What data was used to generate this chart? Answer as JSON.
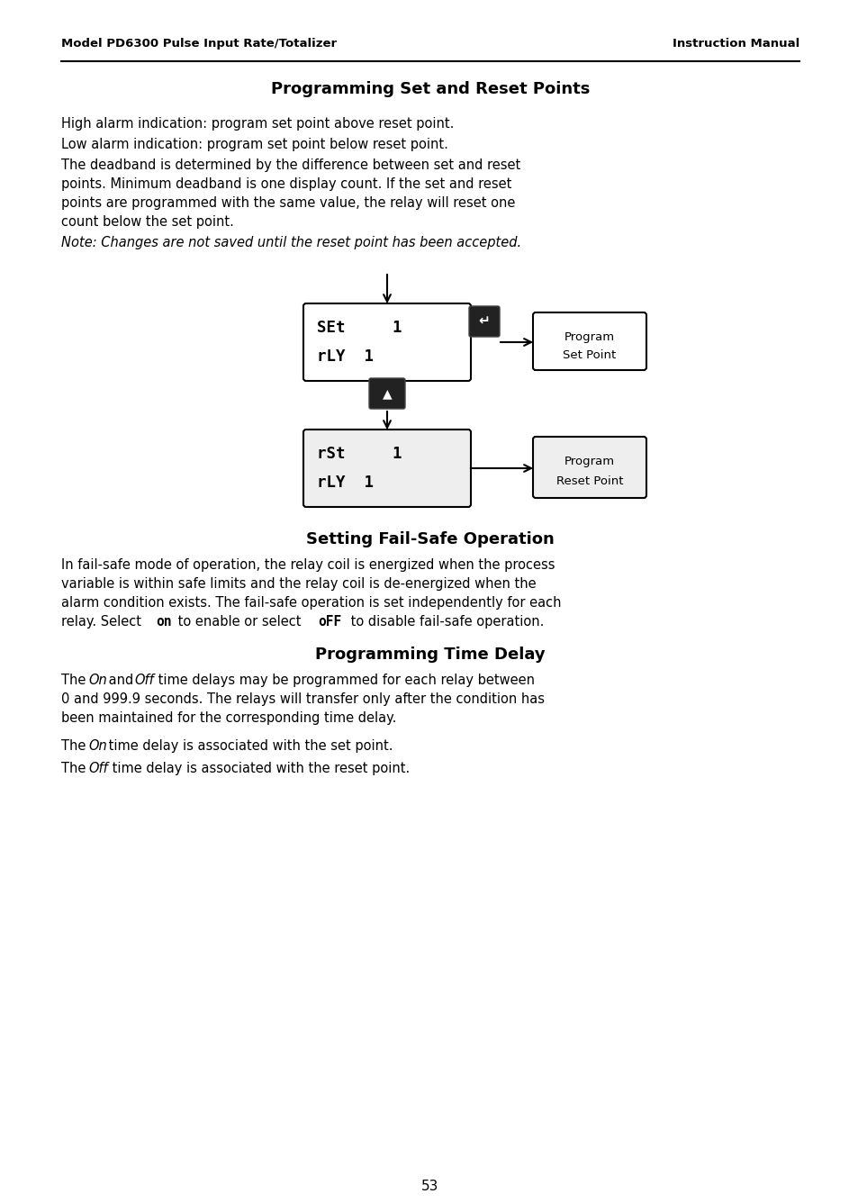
{
  "header_left": "Model PD6300 Pulse Input Rate/Totalizer",
  "header_right": "Instruction Manual",
  "title1": "Programming Set and Reset Points",
  "para1": "High alarm indication: program set point above reset point.",
  "para2": "Low alarm indication: program set point below reset point.",
  "para3_l1": "The deadband is determined by the difference between set and reset",
  "para3_l2": "points. Minimum deadband is one display count. If the set and reset",
  "para3_l3": "points are programmed with the same value, the relay will reset one",
  "para3_l4": "count below the set point.",
  "note1": "Note: Changes are not saved until the reset point has been accepted.",
  "box1_l1": "SEt     1",
  "box1_l2": "rLY  1",
  "box2_l1": "rSt     1",
  "box2_l2": "rLY  1",
  "lbl1_l1": "Program",
  "lbl1_l2": "Set Point",
  "lbl2_l1": "Program",
  "lbl2_l2": "Reset Point",
  "title2": "Setting Fail-Safe Operation",
  "para4_l1": "In fail-safe mode of operation, the relay coil is energized when the process",
  "para4_l2": "variable is within safe limits and the relay coil is de-energized when the",
  "para4_l3": "alarm condition exists. The fail-safe operation is set independently for each",
  "para4_l4a": "relay. Select ",
  "para4_on": "on",
  "para4_l4b": " to enable or select ",
  "para4_off": "oFF",
  "para4_l4c": " to disable fail-safe operation.",
  "title3": "Programming Time Delay",
  "para5_pre": "The ",
  "para5_on": "On",
  "para5_mid": " and ",
  "para5_off": "Off",
  "para5_rest": " time delays may be programmed for each relay between",
  "para5_l2": "0 and 999.9 seconds. The relays will transfer only after the condition has",
  "para5_l3": "been maintained for the corresponding time delay.",
  "para6_pre": "The ",
  "para6_on": "On",
  "para6_rest": " time delay is associated with the set point.",
  "para7_pre": "The ",
  "para7_off": "Off",
  "para7_rest": " time delay is associated with the reset point.",
  "page_num": "53",
  "bg_color": "#ffffff"
}
